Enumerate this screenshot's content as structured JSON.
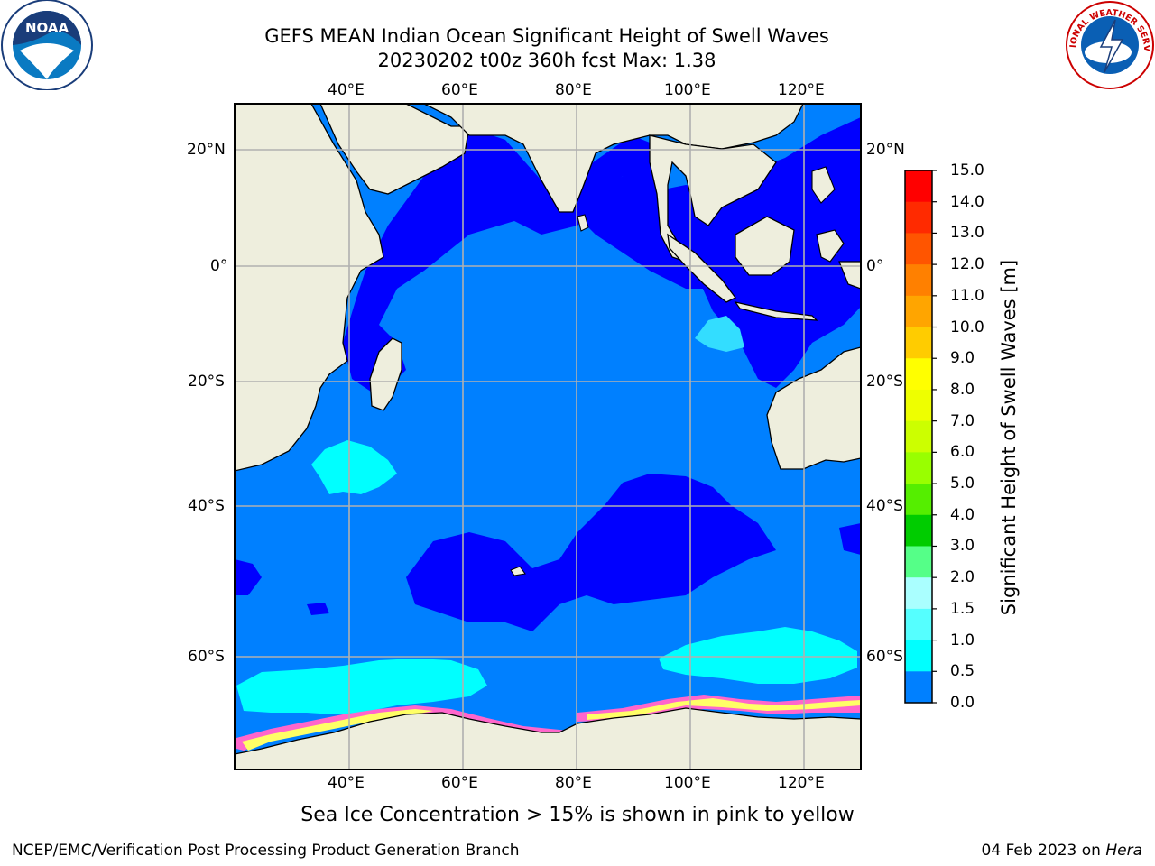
{
  "title": {
    "line1": "GEFS MEAN Indian Ocean Significant Height of Swell Waves",
    "line2": "20230202 t00z 360h fcst   Max: 1.38"
  },
  "logos": {
    "left": {
      "icon": "noaa-logo",
      "text": "NOAA"
    },
    "right": {
      "icon": "national-weather-service-logo",
      "text": "NATIONAL WEATHER SERVICE"
    }
  },
  "map": {
    "top_lon_ticks": [
      "40°E",
      "60°E",
      "80°E",
      "100°E",
      "120°E"
    ],
    "bottom_lon_ticks": [
      "40°E",
      "60°E",
      "80°E",
      "100°E",
      "120°E"
    ],
    "left_lat_ticks": [
      "20°N",
      "0°",
      "20°S",
      "40°S",
      "60°S"
    ],
    "right_lat_ticks": [
      "20°N",
      "0°",
      "20°S",
      "40°S",
      "60°S"
    ],
    "colors": {
      "land": "#eeeedd",
      "swell_0_0_5": "#0000ff",
      "swell_0_5_1_0": "#0080ff",
      "swell_1_0_1_5": "#00ffff",
      "sea_ice_pink": "#ff66cc",
      "sea_ice_yellow": "#ffff66",
      "grid": "#b0b0b0"
    }
  },
  "colorbar": {
    "label": "Significant Height of Swell Waves [m]",
    "ticks": [
      "15.0",
      "14.0",
      "13.0",
      "12.0",
      "11.0",
      "10.0",
      "9.0",
      "8.0",
      "7.0",
      "6.0",
      "5.0",
      "4.0",
      "3.0",
      "2.0",
      "1.5",
      "1.0",
      "0.5",
      "0.0"
    ],
    "colors": [
      "#ff0000",
      "#ff2a00",
      "#ff5500",
      "#ff8000",
      "#ffa500",
      "#ffcc00",
      "#ffff00",
      "#eeff00",
      "#ccff00",
      "#99ff00",
      "#55ee00",
      "#00cc00",
      "#55ff88",
      "#aaffff",
      "#55ffff",
      "#00ffff",
      "#0080ff",
      "#0000ff"
    ]
  },
  "note": "Sea Ice Concentration > 15% is shown in pink to yellow",
  "footer": {
    "left": "NCEP/EMC/Verification Post Processing Product Generation Branch",
    "right_prefix": "04 Feb 2023 on ",
    "right_machine": "Hera"
  }
}
